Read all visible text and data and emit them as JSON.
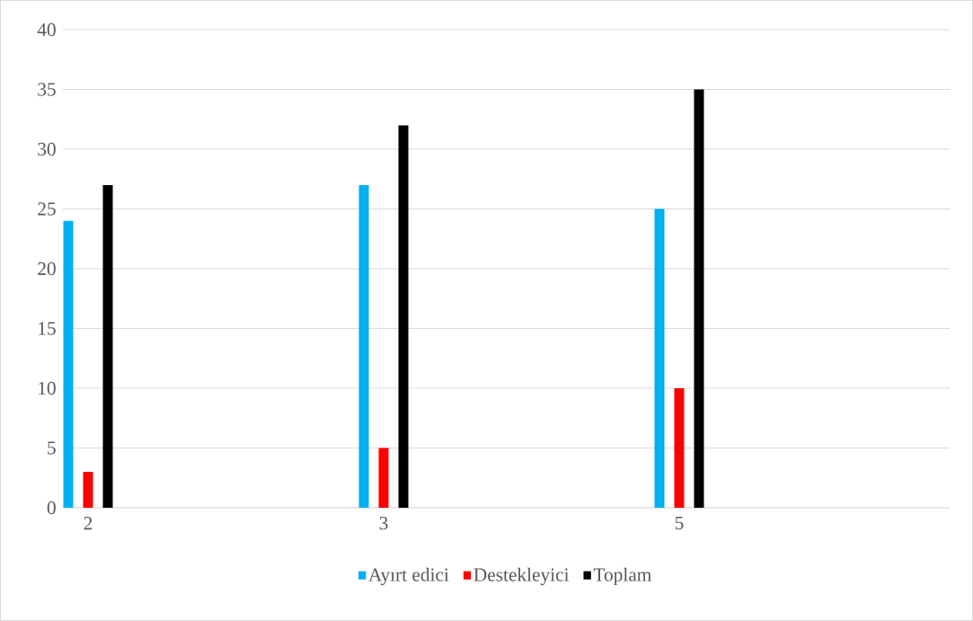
{
  "chart_data": {
    "type": "bar",
    "categories": [
      "2",
      "3",
      "5"
    ],
    "series": [
      {
        "name": "Ayırt edici",
        "color": "#00b0f0",
        "values": [
          24,
          27,
          25
        ]
      },
      {
        "name": "Destekleyici",
        "color": "#ff0000",
        "values": [
          3,
          5,
          10
        ]
      },
      {
        "name": "Toplam",
        "color": "#000000",
        "values": [
          27,
          32,
          35
        ]
      }
    ],
    "ylim": [
      0,
      40
    ],
    "yticks": [
      0,
      5,
      10,
      15,
      20,
      25,
      30,
      35,
      40
    ],
    "grid": "y",
    "legend": "bottom"
  }
}
